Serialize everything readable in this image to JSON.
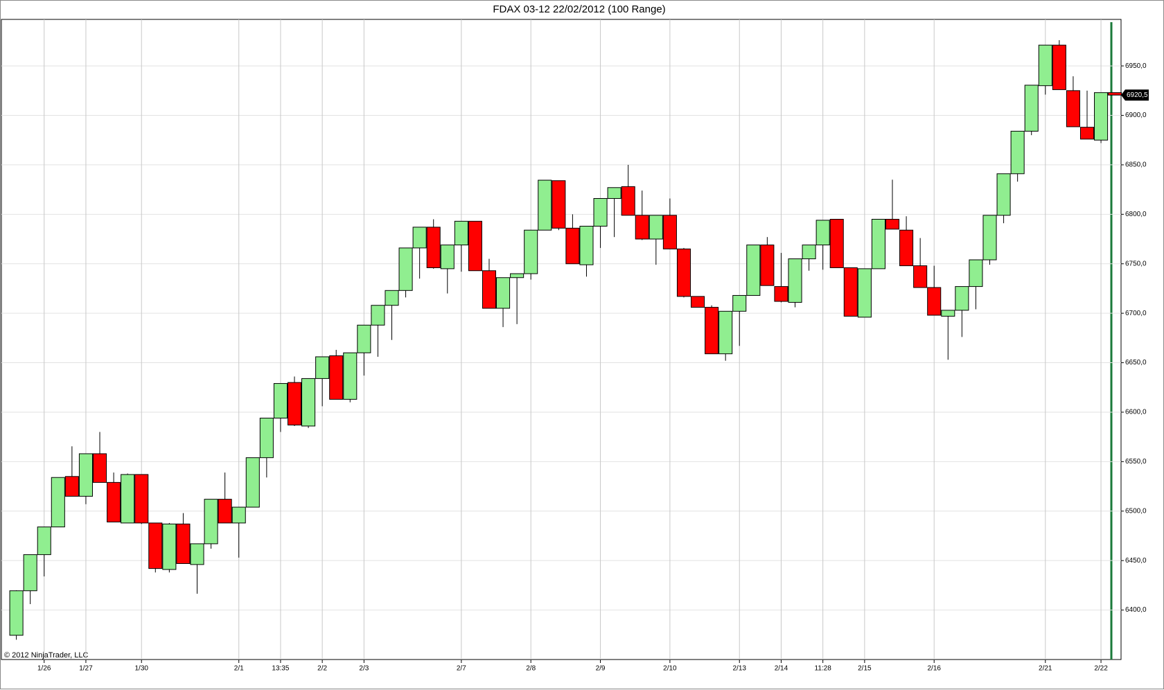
{
  "chart_data": {
    "type": "candlestick",
    "title": "FDAX 03-12  22/02/2012 (100 Range)",
    "annotation": "© 2012 NinjaTrader, LLC",
    "last_price": {
      "value": 6920.5,
      "label": "6920,5"
    },
    "categories": [
      null,
      null,
      "1/26",
      null,
      null,
      "1/27",
      null,
      null,
      null,
      "1/30",
      null,
      null,
      null,
      null,
      null,
      null,
      "2/1",
      null,
      null,
      "13:35",
      null,
      null,
      "2/2",
      null,
      null,
      "2/3",
      null,
      null,
      null,
      null,
      null,
      null,
      "2/7",
      null,
      null,
      null,
      null,
      "2/8",
      null,
      null,
      null,
      null,
      "2/9",
      null,
      null,
      null,
      null,
      "2/10",
      null,
      null,
      null,
      null,
      "2/13",
      null,
      null,
      "2/14",
      null,
      null,
      "11:28",
      null,
      null,
      "2/15",
      null,
      null,
      null,
      null,
      "2/16",
      null,
      null,
      null,
      null,
      null,
      null,
      null,
      "2/21",
      null,
      null,
      null,
      "2/22",
      null
    ],
    "open": [
      6374.5,
      6419.5,
      6456,
      6484,
      6535,
      6515,
      6558,
      6529,
      6488,
      6537,
      6488,
      6441,
      6487,
      6446,
      6467,
      6512,
      6488,
      6504,
      6554,
      6594,
      6630,
      6586,
      6634,
      6657,
      6613,
      6660,
      6688,
      6708,
      6723,
      6766,
      6787,
      6745,
      6769,
      6793,
      6743,
      6705,
      6736,
      6740,
      6784,
      6834,
      6786,
      6749,
      6788,
      6816,
      6828,
      6799,
      6775,
      6799,
      6765,
      6717,
      6706,
      6659,
      6702,
      6718,
      6769,
      6727,
      6711,
      6755,
      6769,
      6795,
      6746,
      6696,
      6745,
      6795,
      6784,
      6748,
      6726,
      6697,
      6703,
      6727,
      6754,
      6799,
      6841,
      6884,
      6930,
      6971,
      6925,
      6888,
      6875,
      6923
    ],
    "high": [
      6420,
      6456,
      6484,
      6534,
      6565.5,
      6558,
      6580,
      6539,
      6538,
      6537,
      6488,
      6488,
      6498,
      6467,
      6512,
      6539,
      6504,
      6554,
      6594,
      6629,
      6636,
      6634,
      6656,
      6663,
      6660,
      6688,
      6708,
      6723,
      6766,
      6787,
      6795,
      6769,
      6793,
      6793,
      6755,
      6736,
      6740,
      6784,
      6834.5,
      6834,
      6800,
      6788,
      6816,
      6827,
      6850,
      6824,
      6799,
      6816,
      6766,
      6717,
      6708,
      6702,
      6718,
      6769,
      6777,
      6761,
      6755,
      6769,
      6794,
      6795,
      6746,
      6745,
      6795,
      6835,
      6798,
      6776,
      6748,
      6703,
      6727,
      6754,
      6799,
      6841,
      6884,
      6930.5,
      6971,
      6976,
      6939.5,
      6925,
      6923,
      6923
    ],
    "low": [
      6370,
      6406,
      6434,
      6484,
      6515,
      6507,
      6529,
      6489,
      6488,
      6487,
      6438,
      6438,
      6447,
      6416.5,
      6462,
      6488,
      6453,
      6504,
      6534,
      6580,
      6586,
      6584,
      6606,
      6613,
      6610,
      6637,
      6656,
      6673,
      6716,
      6735,
      6745,
      6720,
      6742,
      6743,
      6705,
      6686,
      6689,
      6734,
      6784,
      6784,
      6750,
      6737,
      6766,
      6777,
      6799,
      6774,
      6749,
      6765,
      6716,
      6706,
      6659,
      6652,
      6667,
      6718,
      6728,
      6711,
      6706,
      6743,
      6744,
      6746,
      6697,
      6696,
      6745,
      6785,
      6748,
      6726,
      6698,
      6653,
      6676,
      6704,
      6749,
      6791,
      6833,
      6880,
      6921,
      6926,
      6889,
      6876,
      6872,
      6920.5
    ],
    "close": [
      6419.5,
      6456,
      6484,
      6534,
      6515,
      6558,
      6529,
      6489,
      6537,
      6488,
      6442,
      6487,
      6447,
      6467,
      6512,
      6488,
      6504,
      6554,
      6594,
      6629,
      6587,
      6634,
      6656,
      6613,
      6660,
      6688,
      6708,
      6723,
      6766,
      6787,
      6746,
      6769,
      6793,
      6743,
      6705,
      6736,
      6740,
      6784,
      6834.5,
      6786,
      6750,
      6788,
      6816,
      6827,
      6799,
      6775,
      6799,
      6765,
      6717,
      6706,
      6659,
      6702,
      6718,
      6769,
      6728,
      6712,
      6755,
      6769,
      6794,
      6746,
      6697,
      6745,
      6795,
      6785,
      6748,
      6726,
      6698,
      6703,
      6727,
      6754,
      6799,
      6841,
      6884,
      6930.5,
      6971,
      6926,
      6888.5,
      6876,
      6923,
      6920.5
    ],
    "up_color": "#90ee90",
    "down_color": "#ff0000",
    "ylim": [
      6350,
      6997
    ],
    "yticks": [
      {
        "value": 6400,
        "label": "6400,0"
      },
      {
        "value": 6450,
        "label": "6450,0"
      },
      {
        "value": 6500,
        "label": "6500,0"
      },
      {
        "value": 6550,
        "label": "6550,0"
      },
      {
        "value": 6600,
        "label": "6600,0"
      },
      {
        "value": 6650,
        "label": "6650,0"
      },
      {
        "value": 6700,
        "label": "6700,0"
      },
      {
        "value": 6750,
        "label": "6750,0"
      },
      {
        "value": 6800,
        "label": "6800,0"
      },
      {
        "value": 6850,
        "label": "6850,0"
      },
      {
        "value": 6900,
        "label": "6900,0"
      },
      {
        "value": 6950,
        "label": "6950,0"
      }
    ],
    "grid": true
  }
}
